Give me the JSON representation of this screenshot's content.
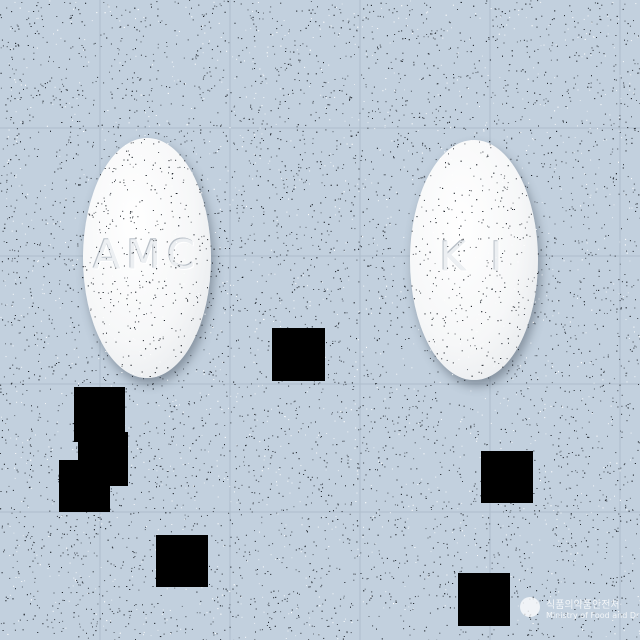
{
  "image": {
    "background_color": "#c2d0de",
    "pills": [
      {
        "imprint": "AMC",
        "color": "#f6f7f8",
        "shape": "oval"
      },
      {
        "imprint": "K I",
        "color": "#f6f7f8",
        "shape": "oval"
      }
    ],
    "redaction_color": "#000000",
    "watermark": {
      "line1": "식품의약품안전처",
      "line2": "Ministry of Food and Drug Safety"
    }
  }
}
